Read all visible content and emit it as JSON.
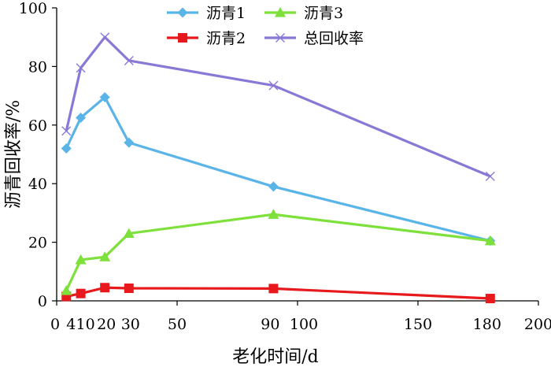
{
  "chart_data": {
    "type": "line",
    "xlabel": "老化时间/d",
    "ylabel": "沥青回收率/%",
    "xlim": [
      0,
      200
    ],
    "ylim": [
      0,
      100
    ],
    "x_ticks": [
      {
        "value": 0,
        "label": "0"
      },
      {
        "value": 4,
        "label": "4"
      },
      {
        "value": 10,
        "label": "10"
      },
      {
        "value": 20,
        "label": "20"
      },
      {
        "value": 30,
        "label": "30"
      },
      {
        "value": 50,
        "label": "50"
      },
      {
        "value": 90,
        "label": "90"
      },
      {
        "value": 100,
        "label": "100"
      },
      {
        "value": 150,
        "label": "150"
      },
      {
        "value": 180,
        "label": "180"
      },
      {
        "value": 200,
        "label": "200"
      }
    ],
    "y_ticks": [
      0,
      20,
      40,
      60,
      80,
      100
    ],
    "grid": false,
    "legend_position": "top-center",
    "series": [
      {
        "name": "沥青1",
        "color": "#5bb4e8",
        "marker": "diamond",
        "x": [
          4,
          10,
          20,
          30,
          90,
          180
        ],
        "y": [
          52,
          62.5,
          69.5,
          54,
          39,
          20.5
        ]
      },
      {
        "name": "沥青2",
        "color": "#e8191c",
        "marker": "square",
        "x": [
          4,
          10,
          20,
          30,
          90,
          180
        ],
        "y": [
          1.5,
          2.5,
          4.5,
          4.3,
          4.2,
          0.8
        ]
      },
      {
        "name": "沥青3",
        "color": "#7ee03a",
        "marker": "triangle",
        "x": [
          4,
          10,
          20,
          30,
          90,
          180
        ],
        "y": [
          3.5,
          14,
          15,
          23,
          29.5,
          20.5
        ]
      },
      {
        "name": "总回收率",
        "color": "#8a78d6",
        "marker": "x",
        "x": [
          4,
          10,
          20,
          30,
          90,
          180
        ],
        "y": [
          58,
          79.5,
          90,
          82,
          73.5,
          42.5
        ]
      }
    ],
    "legend_order": [
      0,
      2,
      1,
      3
    ]
  }
}
